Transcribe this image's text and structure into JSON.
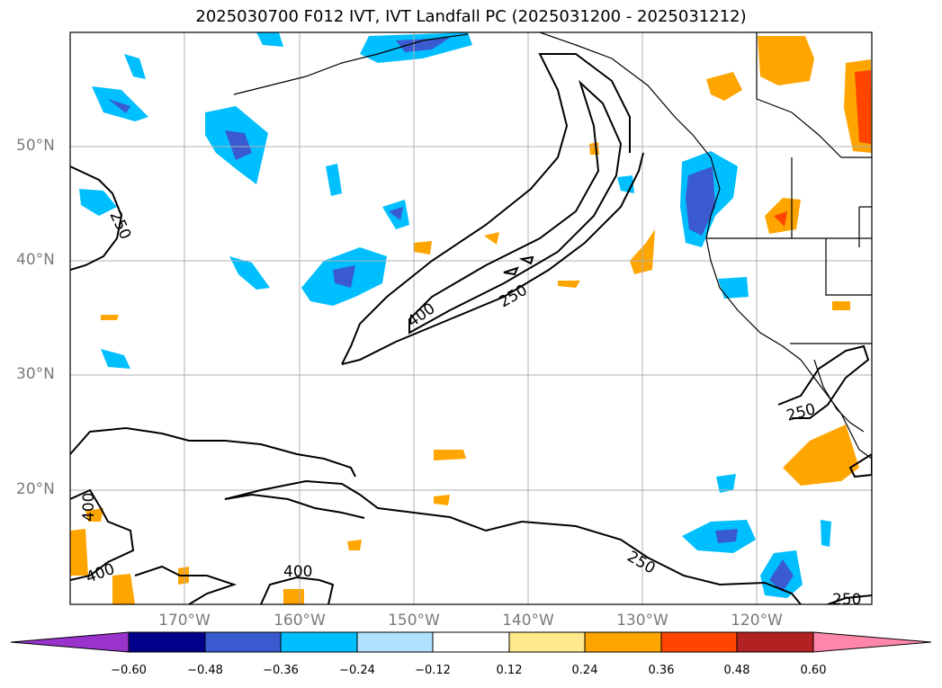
{
  "title": "2025030700 F012 IVT, IVT Landfall PC (2025031200 - 2025031212)",
  "map": {
    "lat_labels": [
      "50°N",
      "40°N",
      "30°N",
      "20°N"
    ],
    "lon_labels": [
      "170°W",
      "160°W",
      "150°W",
      "140°W",
      "130°W",
      "120°W"
    ],
    "contour_labels": [
      "250",
      "400",
      "400",
      "250",
      "250",
      "400",
      "400",
      "250",
      "250"
    ]
  },
  "colorbar": {
    "ticks": [
      "−0.60",
      "−0.48",
      "−0.36",
      "−0.24",
      "−0.12",
      "0.12",
      "0.24",
      "0.36",
      "0.48",
      "0.60"
    ],
    "colors": [
      "#9933cc",
      "#00008b",
      "#3a5bd0",
      "#00bfff",
      "#b0e2ff",
      "#ffffff",
      "#ffe98a",
      "#ffa500",
      "#ff4500",
      "#b22222",
      "#ff88aa"
    ]
  }
}
